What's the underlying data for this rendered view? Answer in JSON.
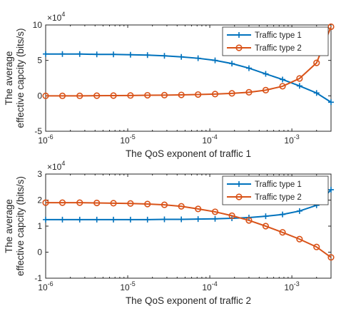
{
  "chart_data": [
    {
      "type": "line",
      "xscale": "log",
      "xlim": [
        1e-06,
        0.003
      ],
      "ylim": [
        -5,
        10
      ],
      "exponent_label": "×10^4",
      "xlabel": "The QoS exponent of traffic 1",
      "ylabel_lines": [
        "The average",
        "effective capcity (bits/s)"
      ],
      "yticks": [
        -5,
        0,
        5,
        10
      ],
      "xticks": [
        1e-06,
        1e-05,
        0.0001,
        0.001
      ],
      "xtick_labels": [
        {
          "base": "10",
          "exp": "-6"
        },
        {
          "base": "10",
          "exp": "-5"
        },
        {
          "base": "10",
          "exp": "-4"
        },
        {
          "base": "10",
          "exp": "-3"
        }
      ],
      "legend_position": "top-right",
      "x": [
        1e-06,
        1.6e-06,
        2.6e-06,
        4.2e-06,
        6.7e-06,
        1.08e-05,
        1.74e-05,
        2.8e-05,
        4.5e-05,
        7.2e-05,
        0.000116,
        0.000186,
        0.0003,
        0.00048,
        0.00077,
        0.00124,
        0.002,
        0.003
      ],
      "series": [
        {
          "name": "Traffic type 1",
          "color": "#0072BD",
          "marker": "plus",
          "values": [
            5.9,
            5.9,
            5.9,
            5.85,
            5.85,
            5.8,
            5.75,
            5.65,
            5.5,
            5.3,
            5.0,
            4.55,
            3.9,
            3.1,
            2.3,
            1.4,
            0.4,
            -0.9
          ]
        },
        {
          "name": "Traffic type 2",
          "color": "#D95319",
          "marker": "circle",
          "values": [
            0,
            0,
            0,
            0.02,
            0.03,
            0.05,
            0.08,
            0.1,
            0.13,
            0.18,
            0.25,
            0.35,
            0.5,
            0.8,
            1.35,
            2.45,
            4.65,
            9.75
          ]
        }
      ]
    },
    {
      "type": "line",
      "xscale": "log",
      "xlim": [
        1e-06,
        0.003
      ],
      "ylim": [
        -1,
        3
      ],
      "exponent_label": "×10^4",
      "xlabel": "The QoS exponent of traffic 2",
      "ylabel_lines": [
        "The average",
        "effective capcity (bits/s)"
      ],
      "yticks": [
        -1,
        0,
        1,
        2,
        3
      ],
      "xticks": [
        1e-06,
        1e-05,
        0.0001,
        0.001
      ],
      "xtick_labels": [
        {
          "base": "10",
          "exp": "-6"
        },
        {
          "base": "10",
          "exp": "-5"
        },
        {
          "base": "10",
          "exp": "-4"
        },
        {
          "base": "10",
          "exp": "-3"
        }
      ],
      "legend_position": "top-right",
      "x": [
        1e-06,
        1.6e-06,
        2.6e-06,
        4.2e-06,
        6.7e-06,
        1.08e-05,
        1.74e-05,
        2.8e-05,
        4.5e-05,
        7.2e-05,
        0.000116,
        0.000186,
        0.0003,
        0.00048,
        0.00077,
        0.00124,
        0.002,
        0.003
      ],
      "series": [
        {
          "name": "Traffic type 1",
          "color": "#0072BD",
          "marker": "plus",
          "values": [
            1.25,
            1.25,
            1.25,
            1.25,
            1.25,
            1.25,
            1.25,
            1.26,
            1.26,
            1.27,
            1.28,
            1.3,
            1.33,
            1.38,
            1.45,
            1.58,
            1.8,
            2.4
          ]
        },
        {
          "name": "Traffic type 2",
          "color": "#D95319",
          "marker": "circle",
          "values": [
            1.9,
            1.9,
            1.9,
            1.89,
            1.88,
            1.87,
            1.85,
            1.82,
            1.76,
            1.66,
            1.55,
            1.4,
            1.22,
            1.0,
            0.76,
            0.5,
            0.2,
            -0.2
          ]
        }
      ]
    }
  ]
}
